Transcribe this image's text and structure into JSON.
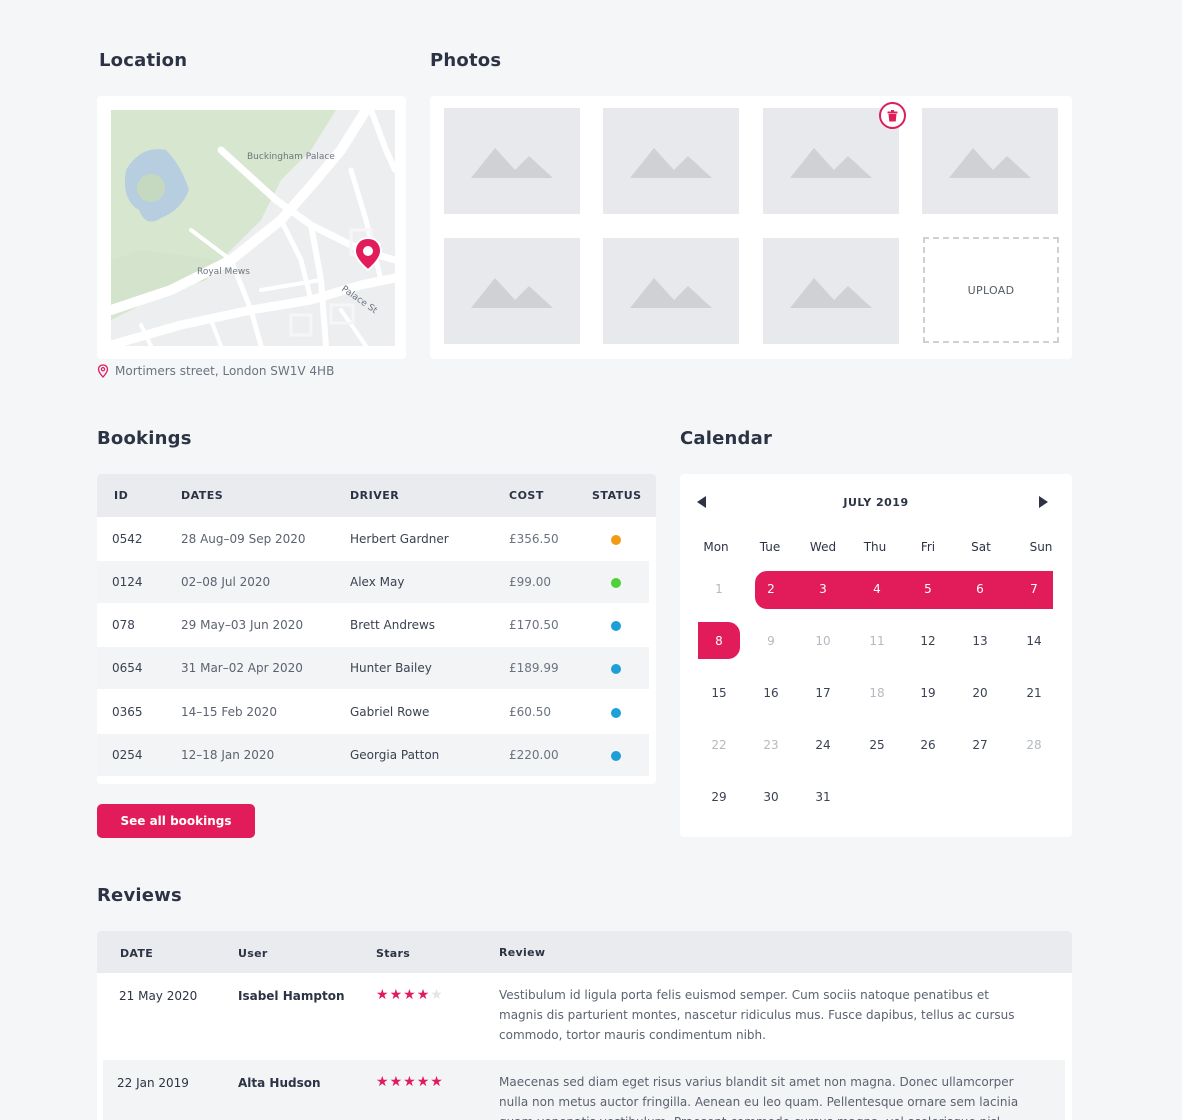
{
  "location": {
    "title": "Location",
    "map_labels": [
      "Buckingham Palace",
      "Royal Mews",
      "Palace St"
    ],
    "address": "Mortimers street, London SW1V 4HB",
    "pin_icon": "map-pin-icon"
  },
  "photos": {
    "title": "Photos",
    "upload_label": "UPLOAD",
    "placeholder_icon": "image-placeholder-icon",
    "delete_icon": "trash-icon",
    "count": 7
  },
  "bookings": {
    "title": "Bookings",
    "columns": [
      "ID",
      "DATES",
      "DRIVER",
      "COST",
      "STATUS"
    ],
    "rows": [
      {
        "id": "0542",
        "dates": "28 Aug–09 Sep 2020",
        "driver": "Herbert Gardner",
        "cost": "£356.50",
        "status_color": "#f39c12"
      },
      {
        "id": "0124",
        "dates": "02–08 Jul 2020",
        "driver": "Alex May",
        "cost": "£99.00",
        "status_color": "#4cd137"
      },
      {
        "id": "078",
        "dates": "29 May–03 Jun 2020",
        "driver": "Brett Andrews",
        "cost": "£170.50",
        "status_color": "#1e9fd8"
      },
      {
        "id": "0654",
        "dates": "31 Mar–02 Apr 2020",
        "driver": "Hunter Bailey",
        "cost": "£189.99",
        "status_color": "#1e9fd8"
      },
      {
        "id": "0365",
        "dates": "14–15 Feb 2020",
        "driver": "Gabriel Rowe",
        "cost": "£60.50",
        "status_color": "#1e9fd8"
      },
      {
        "id": "0254",
        "dates": "12–18 Jan 2020",
        "driver": "Georgia Patton",
        "cost": "£220.00",
        "status_color": "#1e9fd8"
      }
    ],
    "see_all_label": "See all bookings"
  },
  "calendar": {
    "title": "Calendar",
    "month_label": "JULY 2019",
    "weekdays": [
      "Mon",
      "Tue",
      "Wed",
      "Thu",
      "Fri",
      "Sat",
      "Sun"
    ],
    "weeks": [
      [
        "1",
        "2",
        "3",
        "4",
        "5",
        "6",
        "7"
      ],
      [
        "8",
        "9",
        "10",
        "11",
        "12",
        "13",
        "14"
      ],
      [
        "15",
        "16",
        "17",
        "18",
        "19",
        "20",
        "21"
      ],
      [
        "22",
        "23",
        "24",
        "25",
        "26",
        "27",
        "28"
      ],
      [
        "29",
        "30",
        "31"
      ]
    ],
    "selected_days": [
      "2",
      "3",
      "4",
      "5",
      "6",
      "7",
      "8"
    ],
    "muted_days": [
      "1",
      "9",
      "10",
      "11",
      "18",
      "22",
      "23",
      "28"
    ],
    "accent": "#e21b5a"
  },
  "reviews": {
    "title": "Reviews",
    "columns": [
      "DATE",
      "User",
      "Stars",
      "Review"
    ],
    "rows": [
      {
        "date": "21 May 2020",
        "user": "Isabel Hampton",
        "stars": 4,
        "text": "Vestibulum id ligula porta felis euismod semper. Cum sociis natoque penatibus et magnis dis parturient montes, nascetur ridiculus mus. Fusce dapibus, tellus ac cursus commodo, tortor mauris condimentum nibh."
      },
      {
        "date": "22 Jan 2019",
        "user": "Alta Hudson",
        "stars": 5,
        "text": "Maecenas sed diam eget risus varius blandit sit amet non magna. Donec ullamcorper nulla non metus auctor fringilla. Aenean eu leo quam. Pellentesque ornare sem lacinia quam venenatis vestibulum. Praesent commodo cursus magna, vel scelerisque nisl."
      }
    ]
  }
}
